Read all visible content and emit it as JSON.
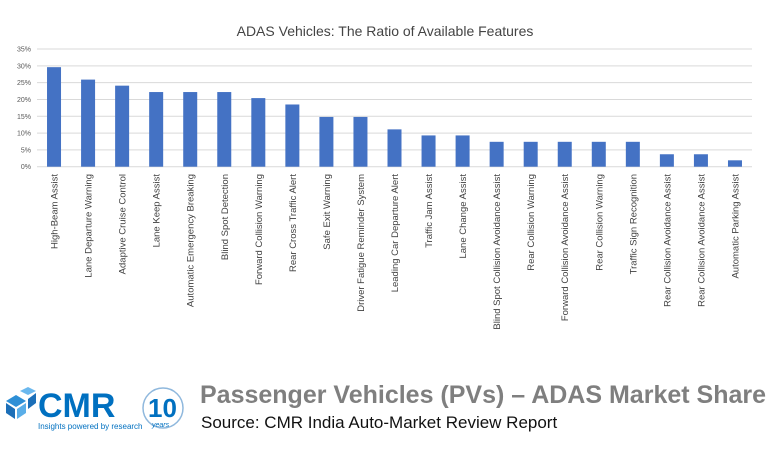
{
  "chart_data": {
    "type": "bar",
    "title": "ADAS Vehicles: The Ratio of Available Features",
    "categories": [
      "High-Beam Assist",
      "Lane Departure Warning",
      "Adaptive Cruise Control",
      "Lane Keep Assist",
      "Automatic Emergency Breaking",
      "Blind Spot Detection",
      "Forward Collision Warning",
      "Rear Cross Traffic Alert",
      "Safe Exit Warning",
      "Driver Fatigue Reminder System",
      "Leading Car Departure Alert",
      "Traffic Jam Assist",
      "Lane Change Assist",
      "Blind Spot Collision Avoidance Assist",
      "Rear Collision Warning",
      "Forward Collision Avoidance Assist",
      "Rear Collision Warning",
      "Traffic Sign Recognition",
      "Rear Collision Avoidance Assist",
      "Rear Collision Avoidance Assist",
      "Automatic Parking Assist"
    ],
    "values": [
      29.6,
      25.9,
      24.1,
      22.2,
      22.2,
      22.2,
      20.4,
      18.5,
      14.8,
      14.8,
      11.1,
      9.3,
      9.3,
      7.4,
      7.4,
      7.4,
      7.4,
      7.4,
      3.7,
      3.7,
      1.9
    ],
    "yticks": [
      "0%",
      "5%",
      "10%",
      "15%",
      "20%",
      "25%",
      "30%",
      "35%"
    ],
    "ylim": [
      0,
      35
    ],
    "xlabel": "",
    "ylabel": "",
    "grid": true,
    "bar_color": "#4472c4"
  },
  "footer": {
    "title": "Passenger Vehicles (PVs) – ADAS Market Share",
    "source": "Source: CMR India Auto-Market Review Report"
  },
  "logo": {
    "text": "CMR",
    "tagline": "Insights powered by research",
    "anniversary": "10 years",
    "color": "#0070c0"
  }
}
